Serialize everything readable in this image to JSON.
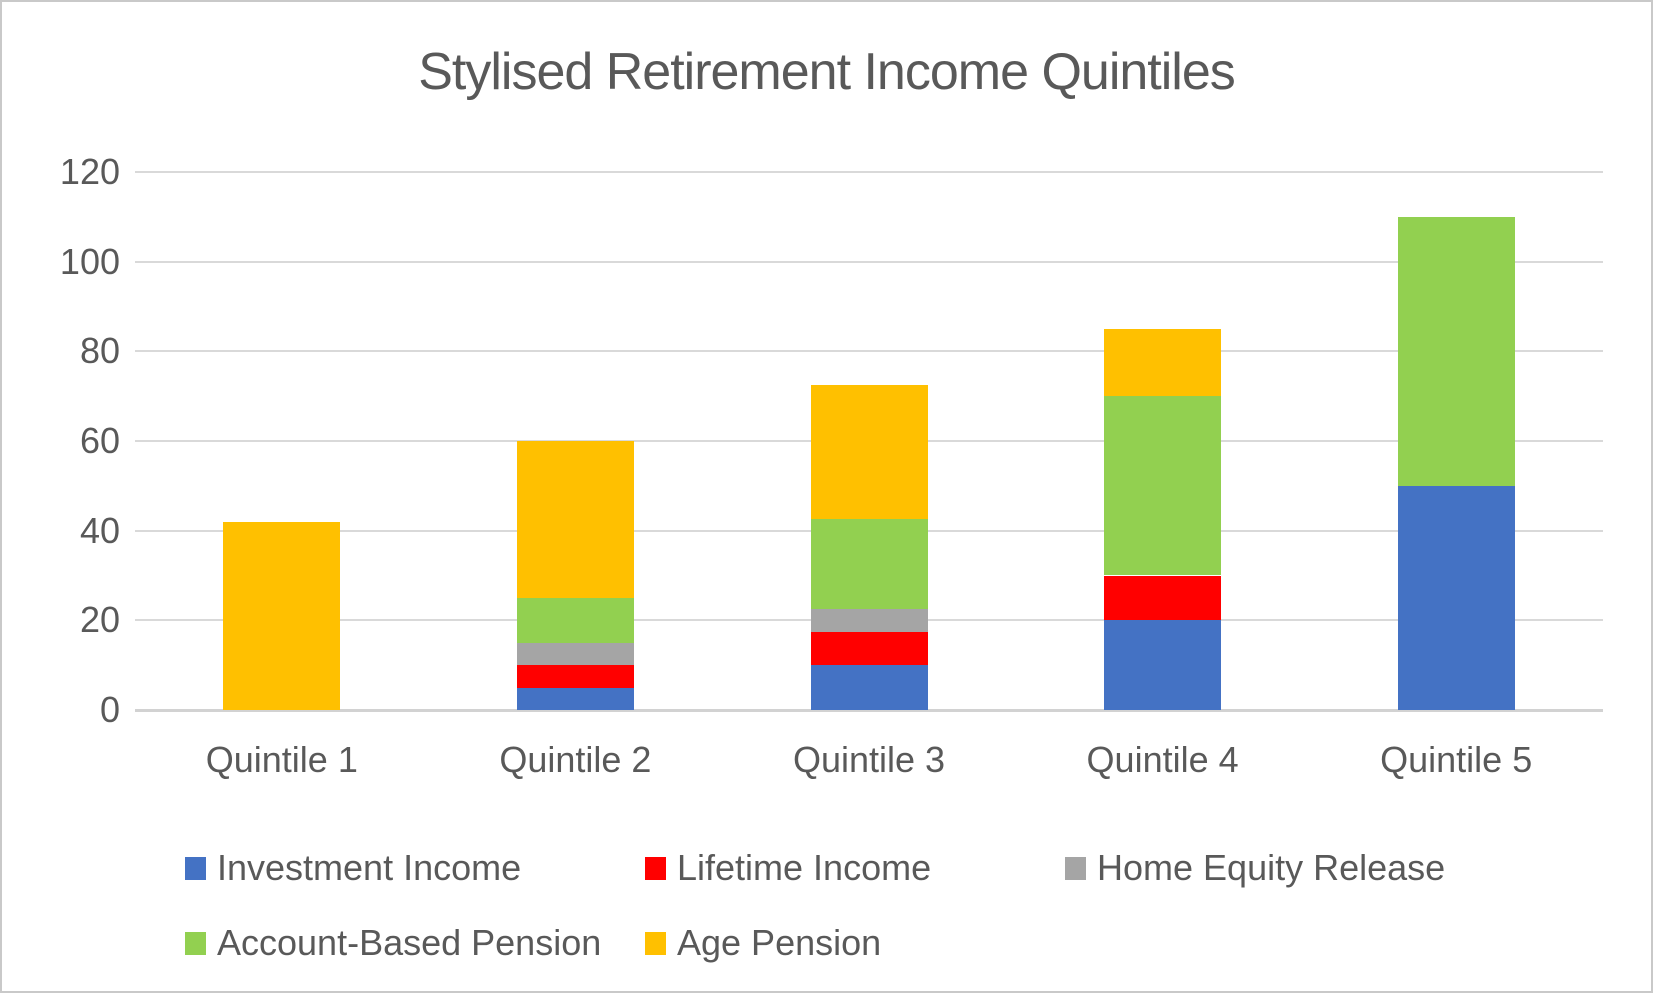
{
  "title": "Stylised Retirement Income Quintiles",
  "chart_data": {
    "type": "bar",
    "stacked": true,
    "title": "Stylised Retirement Income Quintiles",
    "categories": [
      "Quintile 1",
      "Quintile 2",
      "Quintile 3",
      "Quintile 4",
      "Quintile 5"
    ],
    "series": [
      {
        "name": "Investment Income",
        "color": "#4472C4",
        "values": [
          0,
          5,
          10,
          20,
          50
        ]
      },
      {
        "name": "Lifetime Income",
        "color": "#FF0000",
        "values": [
          0,
          5,
          7.5,
          10,
          0
        ]
      },
      {
        "name": "Home Equity Release",
        "color": "#A5A5A5",
        "values": [
          0,
          5,
          5,
          0,
          0
        ]
      },
      {
        "name": "Account-Based Pension",
        "color": "#92D050",
        "values": [
          0,
          10,
          20,
          40,
          60
        ]
      },
      {
        "name": "Age Pension",
        "color": "#FFC000",
        "values": [
          42,
          35,
          30,
          15,
          0
        ]
      }
    ],
    "totals": [
      42,
      60,
      72.5,
      85,
      110
    ],
    "xlabel": "",
    "ylabel": "",
    "ylim": [
      0,
      120
    ],
    "y_ticks": [
      0,
      20,
      40,
      60,
      80,
      100,
      120
    ],
    "grid": true,
    "legend_position": "bottom",
    "gridline_color": "#D9D9D9",
    "text_color": "#595959"
  },
  "legend_rows": [
    [
      "Investment Income",
      "Lifetime Income",
      "Home Equity Release"
    ],
    [
      "Account-Based Pension",
      "Age Pension"
    ]
  ]
}
